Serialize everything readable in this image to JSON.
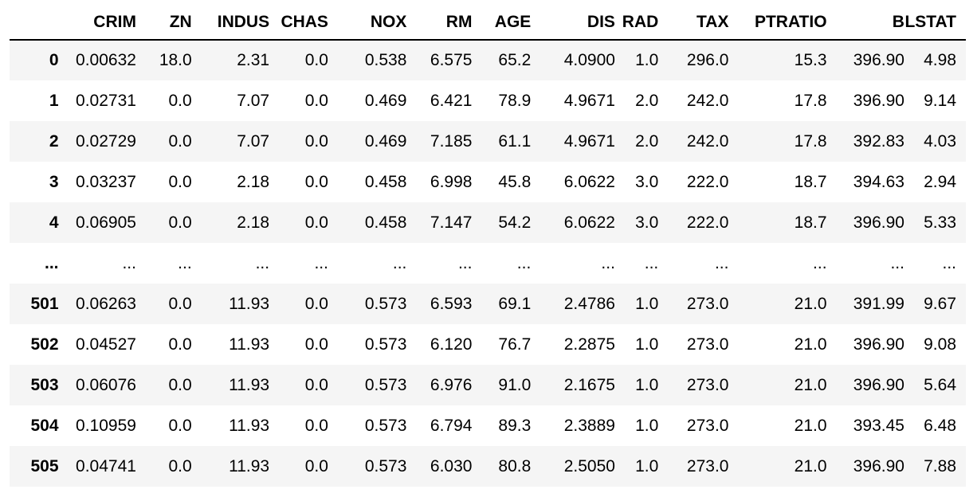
{
  "table": {
    "columns": [
      "CRIM",
      "ZN",
      "INDUS",
      "CHAS",
      "NOX",
      "RM",
      "AGE",
      "DIS",
      "RAD",
      "TAX",
      "PTRATIO",
      "B",
      "LSTAT"
    ],
    "rows": [
      {
        "index": "0",
        "cells": [
          "0.00632",
          "18.0",
          "2.31",
          "0.0",
          "0.538",
          "6.575",
          "65.2",
          "4.0900",
          "1.0",
          "296.0",
          "15.3",
          "396.90",
          "4.98"
        ]
      },
      {
        "index": "1",
        "cells": [
          "0.02731",
          "0.0",
          "7.07",
          "0.0",
          "0.469",
          "6.421",
          "78.9",
          "4.9671",
          "2.0",
          "242.0",
          "17.8",
          "396.90",
          "9.14"
        ]
      },
      {
        "index": "2",
        "cells": [
          "0.02729",
          "0.0",
          "7.07",
          "0.0",
          "0.469",
          "7.185",
          "61.1",
          "4.9671",
          "2.0",
          "242.0",
          "17.8",
          "392.83",
          "4.03"
        ]
      },
      {
        "index": "3",
        "cells": [
          "0.03237",
          "0.0",
          "2.18",
          "0.0",
          "0.458",
          "6.998",
          "45.8",
          "6.0622",
          "3.0",
          "222.0",
          "18.7",
          "394.63",
          "2.94"
        ]
      },
      {
        "index": "4",
        "cells": [
          "0.06905",
          "0.0",
          "2.18",
          "0.0",
          "0.458",
          "7.147",
          "54.2",
          "6.0622",
          "3.0",
          "222.0",
          "18.7",
          "396.90",
          "5.33"
        ]
      },
      {
        "index": "...",
        "cells": [
          "...",
          "...",
          "...",
          "...",
          "...",
          "...",
          "...",
          "...",
          "...",
          "...",
          "...",
          "...",
          "..."
        ]
      },
      {
        "index": "501",
        "cells": [
          "0.06263",
          "0.0",
          "11.93",
          "0.0",
          "0.573",
          "6.593",
          "69.1",
          "2.4786",
          "1.0",
          "273.0",
          "21.0",
          "391.99",
          "9.67"
        ]
      },
      {
        "index": "502",
        "cells": [
          "0.04527",
          "0.0",
          "11.93",
          "0.0",
          "0.573",
          "6.120",
          "76.7",
          "2.2875",
          "1.0",
          "273.0",
          "21.0",
          "396.90",
          "9.08"
        ]
      },
      {
        "index": "503",
        "cells": [
          "0.06076",
          "0.0",
          "11.93",
          "0.0",
          "0.573",
          "6.976",
          "91.0",
          "2.1675",
          "1.0",
          "273.0",
          "21.0",
          "396.90",
          "5.64"
        ]
      },
      {
        "index": "504",
        "cells": [
          "0.10959",
          "0.0",
          "11.93",
          "0.0",
          "0.573",
          "6.794",
          "89.3",
          "2.3889",
          "1.0",
          "273.0",
          "21.0",
          "393.45",
          "6.48"
        ]
      },
      {
        "index": "505",
        "cells": [
          "0.04741",
          "0.0",
          "11.93",
          "0.0",
          "0.573",
          "6.030",
          "80.8",
          "2.5050",
          "1.0",
          "273.0",
          "21.0",
          "396.90",
          "7.88"
        ]
      }
    ]
  }
}
